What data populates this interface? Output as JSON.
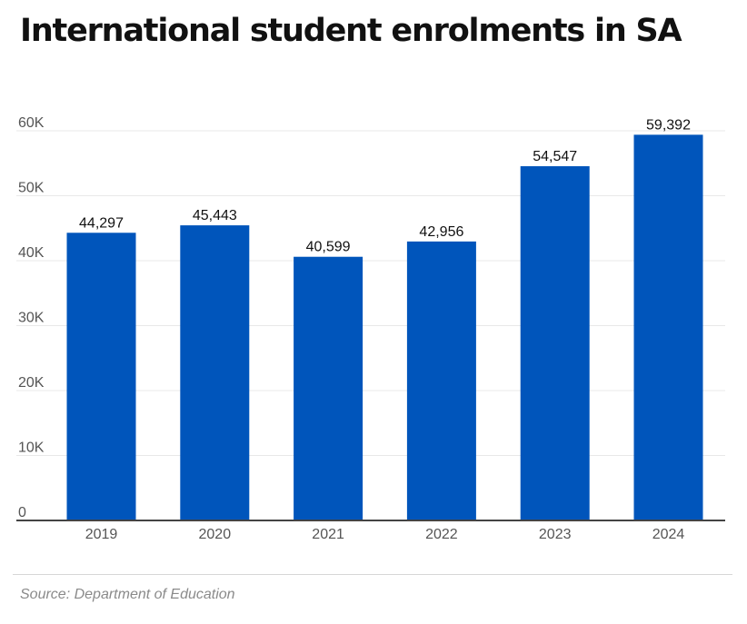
{
  "colors": {
    "bar": "#0055bb",
    "text": "#111111",
    "tick_text": "#555555",
    "grid": "#e8e8e8",
    "axis": "#444444",
    "source": "#8a8a8a"
  },
  "chart_data": {
    "type": "bar",
    "title": "International student enrolments in SA",
    "xlabel": "",
    "ylabel": "",
    "categories": [
      "2019",
      "2020",
      "2021",
      "2022",
      "2023",
      "2024"
    ],
    "values": [
      44297,
      45443,
      40599,
      42956,
      54547,
      59392
    ],
    "value_labels": [
      "44,297",
      "45,443",
      "40,599",
      "42,956",
      "54,547",
      "59,392"
    ],
    "ylim": [
      0,
      60000
    ],
    "yticks": [
      0,
      10000,
      20000,
      30000,
      40000,
      50000,
      60000
    ],
    "ytick_labels": [
      "0",
      "10K",
      "20K",
      "30K",
      "40K",
      "50K",
      "60K"
    ],
    "grid": true,
    "legend": "none"
  },
  "source_text": "Source: Department of Education"
}
